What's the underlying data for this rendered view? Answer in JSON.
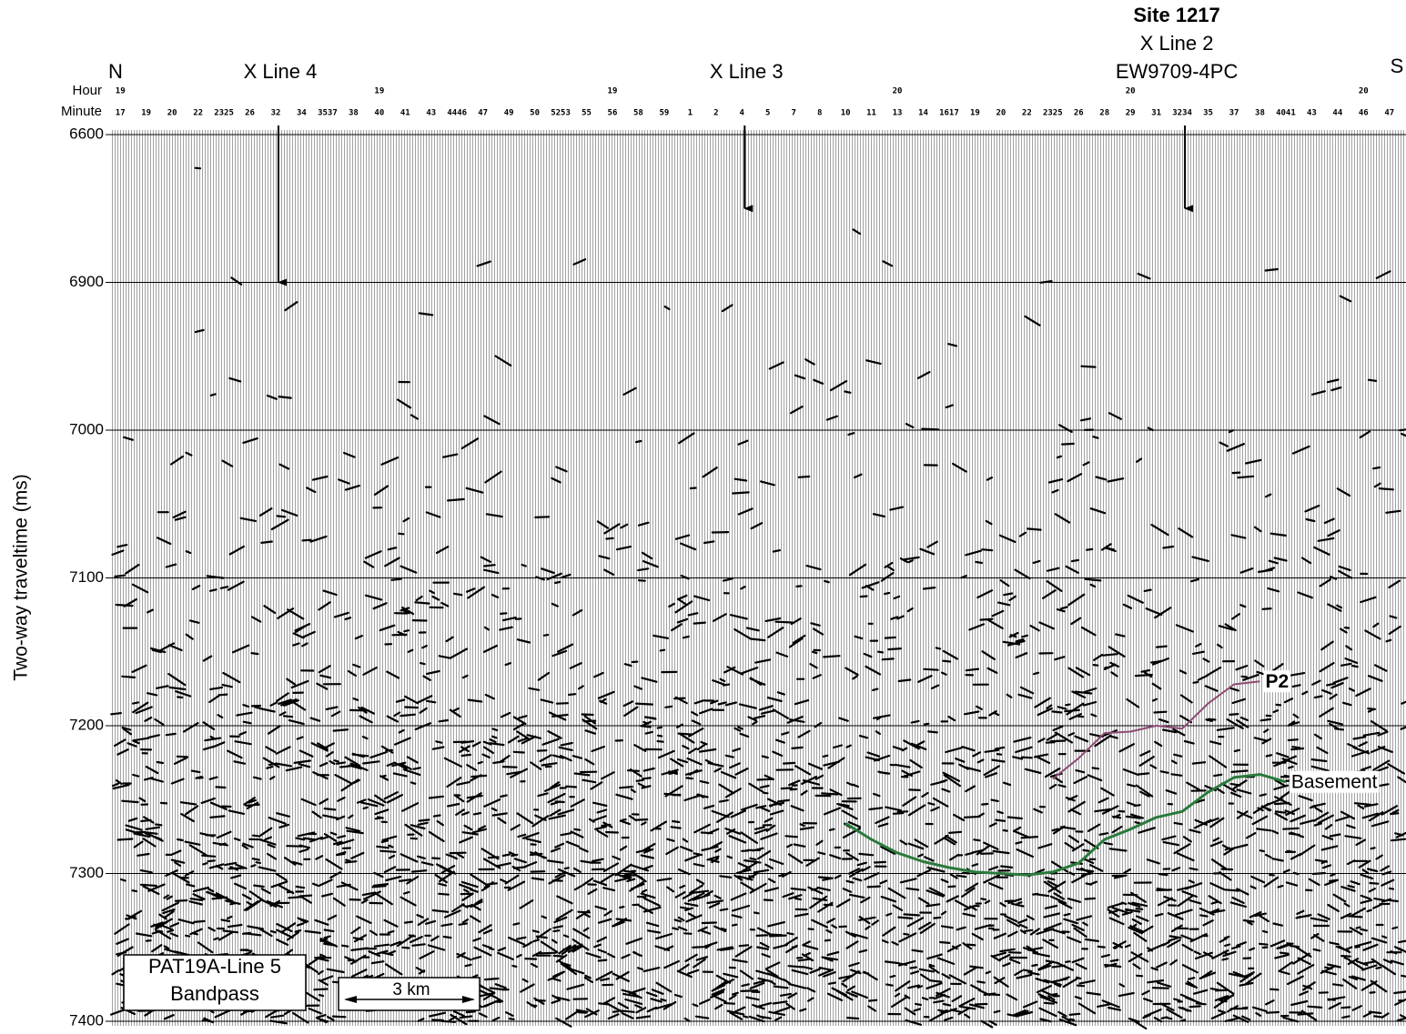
{
  "chart_data": {
    "type": "seismic",
    "ends": {
      "start": "N",
      "end": "S"
    },
    "hour_axis_label": "Hour",
    "minute_axis_label": "Minute",
    "y_label": "Two-way traveltime (ms)",
    "categories": [
      "17",
      "19",
      "20",
      "22",
      "2325",
      "26",
      "32",
      "34",
      "3537",
      "38",
      "40",
      "41",
      "43",
      "4446",
      "47",
      "49",
      "50",
      "5253",
      "55",
      "56",
      "58",
      "59",
      "1",
      "2",
      "4",
      "5",
      "7",
      "8",
      "10",
      "11",
      "13",
      "14",
      "1617",
      "19",
      "20",
      "22",
      "2325",
      "26",
      "28",
      "29",
      "31",
      "3234",
      "35",
      "37",
      "38",
      "4041",
      "43",
      "44",
      "46",
      "47"
    ],
    "hours": [
      "19",
      null,
      null,
      null,
      null,
      null,
      null,
      null,
      null,
      null,
      "19",
      null,
      null,
      null,
      null,
      null,
      null,
      null,
      null,
      "19",
      null,
      null,
      null,
      null,
      null,
      null,
      null,
      null,
      null,
      null,
      "20",
      null,
      null,
      null,
      null,
      null,
      null,
      null,
      null,
      "20",
      null,
      null,
      null,
      null,
      null,
      null,
      null,
      null,
      "20",
      null
    ],
    "ylim": [
      6600,
      7400
    ],
    "yticks": [
      6600,
      6900,
      7000,
      7100,
      7200,
      7300,
      7400
    ],
    "grid": true,
    "series": [
      {
        "name": "P2",
        "color": "#8c4a72",
        "values": [
          null,
          null,
          null,
          null,
          null,
          null,
          null,
          null,
          null,
          null,
          null,
          null,
          null,
          null,
          null,
          null,
          null,
          null,
          null,
          null,
          null,
          null,
          null,
          null,
          null,
          null,
          null,
          null,
          null,
          null,
          null,
          null,
          null,
          null,
          null,
          null,
          7236,
          7222,
          7205,
          7204,
          7200,
          7202,
          7185,
          7172,
          7170,
          null,
          null,
          null,
          null,
          null
        ]
      },
      {
        "name": "Basement",
        "color": "#2a7a3c",
        "values": [
          null,
          null,
          null,
          null,
          null,
          null,
          null,
          null,
          null,
          null,
          null,
          null,
          null,
          null,
          null,
          null,
          null,
          null,
          null,
          null,
          null,
          null,
          null,
          null,
          null,
          null,
          null,
          null,
          7266,
          7277,
          7286,
          7292,
          7296,
          7299,
          7300,
          7301,
          7299,
          7293,
          7277,
          7270,
          7262,
          7258,
          7245,
          7235,
          7233,
          7238,
          null,
          null,
          null,
          null
        ]
      }
    ],
    "annotations": [
      {
        "text": [
          "X Line 4"
        ],
        "at": "32",
        "tip": 6900
      },
      {
        "text": [
          "X Line 3"
        ],
        "at": "4",
        "tip": 6750
      },
      {
        "text": [
          "Site 1217",
          "X Line 2",
          "EW9709-4PC"
        ],
        "at": "3234",
        "tip": 6750
      }
    ],
    "box_label": [
      "PAT19A-Line 5",
      "Bandpass"
    ],
    "scale_bar": "3 km"
  }
}
